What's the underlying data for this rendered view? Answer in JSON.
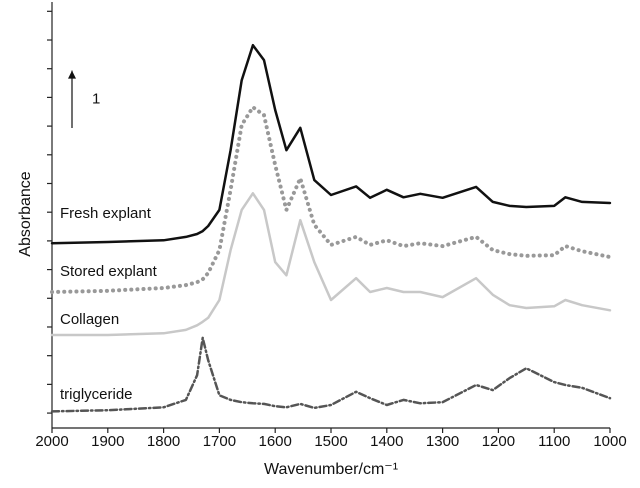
{
  "chart_data": {
    "type": "line",
    "xlabel": "Wavenumber/cm⁻¹",
    "ylabel": "Absorbance",
    "scale_arrow": 1,
    "xlim": [
      2000,
      1000
    ],
    "xticks": [
      2000,
      1900,
      1800,
      1700,
      1600,
      1500,
      1400,
      1300,
      1200,
      1100,
      1000
    ],
    "ylim": [
      -0.26,
      7.11
    ],
    "yticks": [
      0,
      0.5,
      1,
      1.5,
      2,
      2.5,
      3,
      3.5,
      4,
      4.5,
      5,
      5.5,
      6,
      6.5,
      7
    ],
    "x": [
      2000,
      1900,
      1800,
      1760,
      1740,
      1730,
      1720,
      1700,
      1680,
      1660,
      1640,
      1620,
      1600,
      1580,
      1555,
      1530,
      1500,
      1455,
      1430,
      1400,
      1370,
      1340,
      1300,
      1240,
      1210,
      1180,
      1150,
      1100,
      1080,
      1050,
      1000
    ],
    "series": [
      {
        "name": "Fresh explant",
        "color": "#111111",
        "style": "solid",
        "values": [
          2.96,
          2.98,
          3.01,
          3.07,
          3.12,
          3.17,
          3.26,
          3.54,
          4.58,
          5.8,
          6.41,
          6.15,
          5.28,
          4.58,
          4.97,
          4.06,
          3.8,
          3.95,
          3.75,
          3.89,
          3.76,
          3.82,
          3.75,
          3.94,
          3.68,
          3.61,
          3.59,
          3.61,
          3.76,
          3.68,
          3.66
        ]
      },
      {
        "name": "Stored explant",
        "color": "#999999",
        "style": "dotted",
        "values": [
          2.11,
          2.13,
          2.18,
          2.23,
          2.28,
          2.33,
          2.44,
          2.84,
          3.89,
          5.02,
          5.33,
          5.19,
          4.32,
          3.54,
          4.09,
          3.28,
          2.93,
          3.07,
          2.93,
          3.01,
          2.91,
          2.96,
          2.91,
          3.07,
          2.84,
          2.77,
          2.74,
          2.75,
          2.91,
          2.82,
          2.72
        ]
      },
      {
        "name": "Collagen",
        "color": "#c8c8c8",
        "style": "solid",
        "values": [
          1.36,
          1.36,
          1.39,
          1.45,
          1.53,
          1.59,
          1.66,
          1.97,
          2.84,
          3.54,
          3.83,
          3.54,
          2.63,
          2.4,
          3.36,
          2.63,
          1.97,
          2.35,
          2.11,
          2.18,
          2.11,
          2.11,
          2.02,
          2.35,
          2.06,
          1.88,
          1.83,
          1.86,
          1.97,
          1.88,
          1.79
        ]
      },
      {
        "name": "triglyceride",
        "color": "#555555",
        "style": "dashdot",
        "values": [
          0.03,
          0.05,
          0.1,
          0.23,
          0.66,
          1.31,
          0.92,
          0.31,
          0.23,
          0.19,
          0.17,
          0.16,
          0.12,
          0.1,
          0.16,
          0.09,
          0.14,
          0.37,
          0.26,
          0.14,
          0.23,
          0.17,
          0.19,
          0.49,
          0.4,
          0.61,
          0.78,
          0.54,
          0.49,
          0.44,
          0.26
        ]
      }
    ]
  }
}
